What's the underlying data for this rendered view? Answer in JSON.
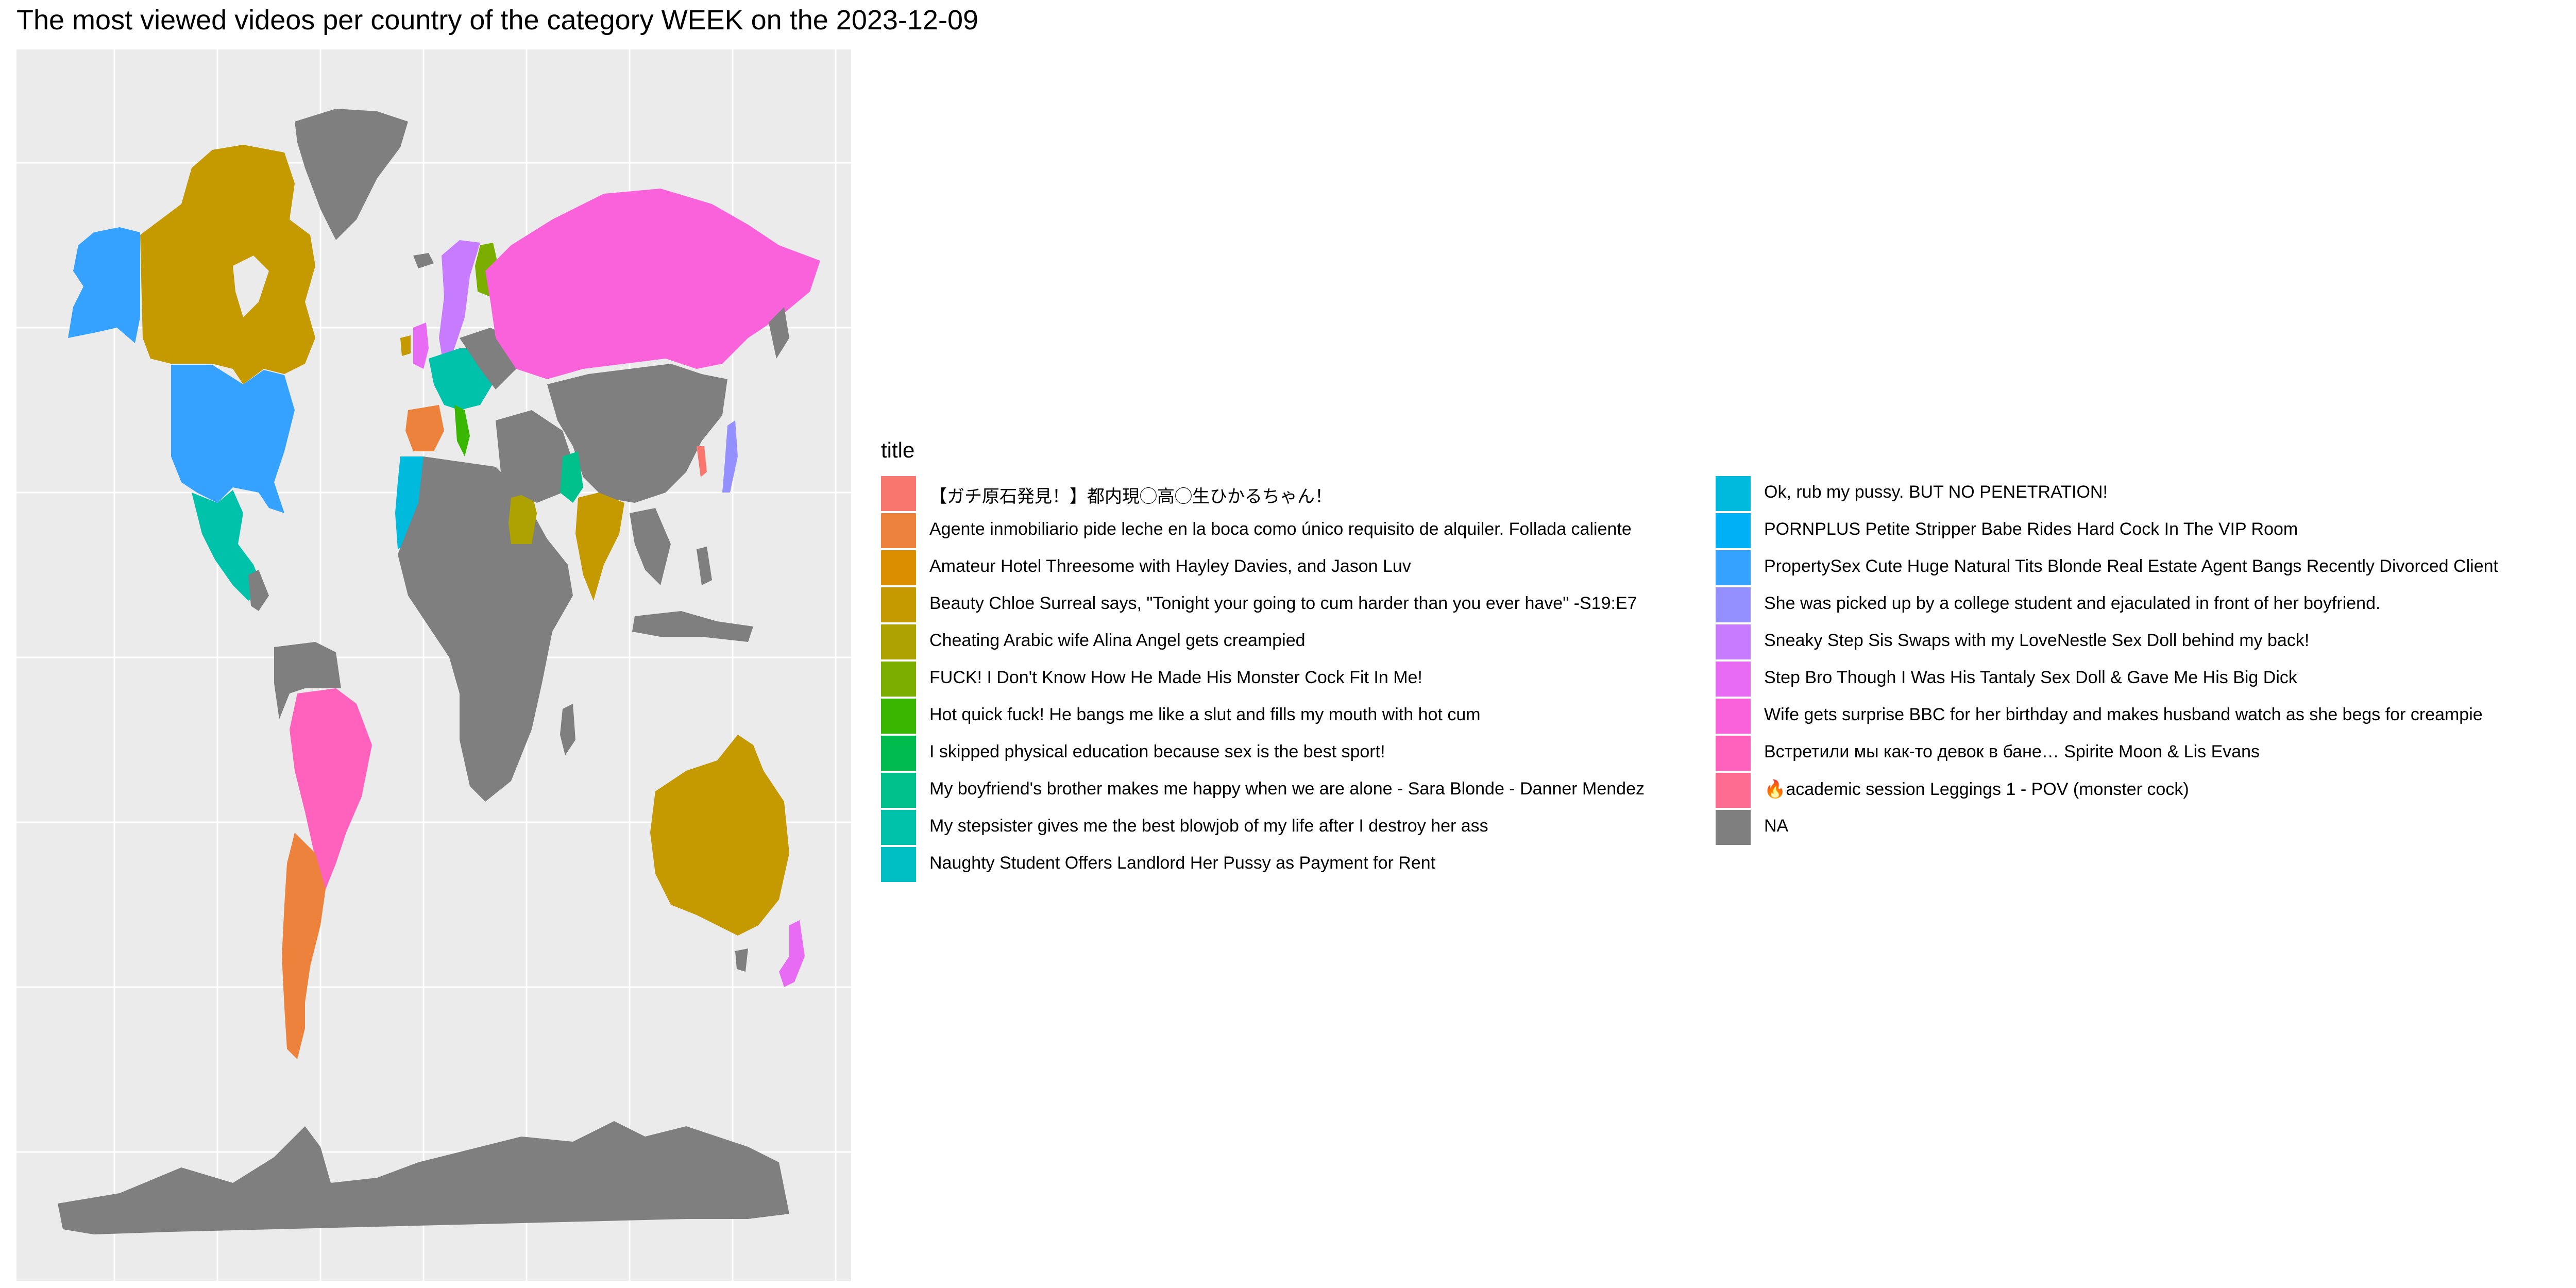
{
  "title": "The most viewed videos per country of the category WEEK on the 2023-12-09",
  "map": {
    "panel_background": "#ebebeb",
    "grid_color": "#ffffff",
    "na_color": "#7f7f7f",
    "grid_lines": true
  },
  "legend": {
    "title": "title",
    "placement": "right",
    "entries": [
      {
        "label": "【ガチ原石発見！】都内現◯高◯生ひかるちゃん！",
        "color": "#F8766D"
      },
      {
        "label": "Agente inmobiliario pide leche en la boca como único requisito de alquiler. Follada caliente",
        "color": "#EC823C"
      },
      {
        "label": "Amateur Hotel Threesome with Hayley Davies, and Jason Luv",
        "color": "#DB8E00"
      },
      {
        "label": "Beauty Chloe Surreal says, \"Tonight your going to cum harder than you ever have\" -S19:E7",
        "color": "#C59900"
      },
      {
        "label": "Cheating Arabic wife Alina Angel gets creampied",
        "color": "#AEA200"
      },
      {
        "label": "FUCK! I Don't Know How He Made His Monster Cock Fit In Me!",
        "color": "#7CAE00"
      },
      {
        "label": "Hot quick fuck! He bangs me like a slut and fills my mouth with hot cum",
        "color": "#39B600"
      },
      {
        "label": "I skipped physical education because sex is the best sport!",
        "color": "#00BB4E"
      },
      {
        "label": "My boyfriend's brother makes me happy when we are alone - Sara Blonde - Danner Mendez",
        "color": "#00C08B"
      },
      {
        "label": "My stepsister gives me the best blowjob of my life after I destroy her ass",
        "color": "#00C1AA"
      },
      {
        "label": "Naughty Student Offers Landlord Her Pussy as Payment for Rent",
        "color": "#00BFC4"
      },
      {
        "label": "Ok, rub my pussy. BUT NO PENETRATION!",
        "color": "#00BADE"
      },
      {
        "label": "PORNPLUS Petite Stripper Babe Rides Hard Cock In The VIP Room",
        "color": "#00B0F6"
      },
      {
        "label": "PropertySex Cute Huge Natural Tits Blonde Real Estate Agent Bangs Recently Divorced Client",
        "color": "#35A2FF"
      },
      {
        "label": "She was picked up by a college student and ejaculated in front of her boyfriend.",
        "color": "#9590FF"
      },
      {
        "label": "Sneaky Step Sis Swaps with my LoveNestle Sex Doll behind my back!",
        "color": "#C77CFF"
      },
      {
        "label": "Step Bro Though I Was His Tantaly Sex Doll & Gave Me His Big Dick",
        "color": "#E76BF3"
      },
      {
        "label": "Wife gets surprise BBC for her birthday and makes husband watch as she begs for creampie",
        "color": "#FA62DB"
      },
      {
        "label": "Встретили мы как-то девок в бане… Spirite Moon & Lis Evans",
        "color": "#FF62BC"
      },
      {
        "label": "🔥academic session Leggings 1 - POV (monster cock)",
        "color": "#FF6C91"
      },
      {
        "label": "NA",
        "color": "#7F7F7F"
      }
    ]
  },
  "regions": [
    {
      "region": "Alaska",
      "entry": 13
    },
    {
      "region": "Canada",
      "entry": 3
    },
    {
      "region": "United States",
      "entry": 13
    },
    {
      "region": "Mexico",
      "entry": 9
    },
    {
      "region": "Greenland",
      "entry": 20
    },
    {
      "region": "Brazil",
      "entry": 18
    },
    {
      "region": "Argentina",
      "entry": 1
    },
    {
      "region": "Chile",
      "entry": 1
    },
    {
      "region": "Russia",
      "entry": 17
    },
    {
      "region": "Japan",
      "entry": 14
    },
    {
      "region": "Korea",
      "entry": 0
    },
    {
      "region": "India",
      "entry": 3
    },
    {
      "region": "Pakistan",
      "entry": 8
    },
    {
      "region": "Saudi Arabia",
      "entry": 4
    },
    {
      "region": "Australia",
      "entry": 3
    },
    {
      "region": "New Zealand",
      "entry": 16
    },
    {
      "region": "Scandinavia",
      "entry": 15
    },
    {
      "region": "Finland",
      "entry": 5
    },
    {
      "region": "United Kingdom",
      "entry": 16
    },
    {
      "region": "Ireland",
      "entry": 3
    },
    {
      "region": "Iberia",
      "entry": 1
    },
    {
      "region": "Morocco",
      "entry": 11
    },
    {
      "region": "Central Europe",
      "entry": 9
    },
    {
      "region": "Italy",
      "entry": 6
    },
    {
      "region": "Africa",
      "entry": 20
    },
    {
      "region": "China",
      "entry": 20
    },
    {
      "region": "Antarctica",
      "entry": 20
    }
  ]
}
